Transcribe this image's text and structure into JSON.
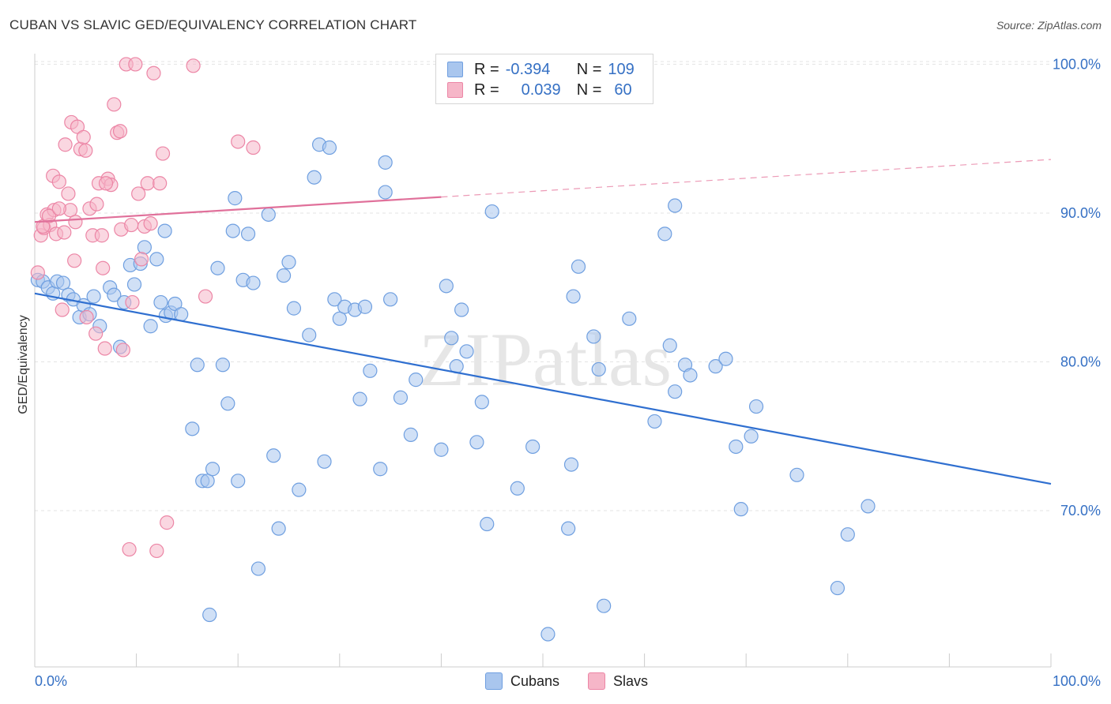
{
  "title": "CUBAN VS SLAVIC GED/EQUIVALENCY CORRELATION CHART",
  "source": "Source: ZipAtlas.com",
  "watermark": "ZIPatlas",
  "legend": {
    "rows": [
      {
        "r_label": "R =",
        "r_value": "-0.394",
        "n_label": "N =",
        "n_value": "109",
        "color": "#a9c6ee",
        "border": "#6f9fe0"
      },
      {
        "r_label": "R =",
        "r_value": "0.039",
        "n_label": "N =",
        "n_value": "60",
        "color": "#f6b6c8",
        "border": "#ec86a6"
      }
    ]
  },
  "bottom_legend": [
    "Cubans",
    "Slavs"
  ],
  "chart_data": {
    "type": "scatter",
    "title": "CUBAN VS SLAVIC GED/EQUIVALENCY CORRELATION CHART",
    "xlabel": "",
    "ylabel": "GED/Equivalency",
    "x_tick_labels": [
      "0.0%",
      "100.0%"
    ],
    "y_tick_labels": [
      "100.0%",
      "90.0%",
      "80.0%",
      "70.0%"
    ],
    "xlim": [
      0,
      100
    ],
    "ylim": [
      59.5,
      100.5
    ],
    "y_ticks": [
      100,
      90,
      80,
      70
    ],
    "grid": true,
    "series": [
      {
        "name": "Cubans",
        "color": "#6f9fe0",
        "fill": "#a9c6ee",
        "trend": {
          "x0": 0,
          "y0": 84.6,
          "x1": 100,
          "y1": 71.8,
          "dashed_from": null
        },
        "points": [
          [
            0.3,
            85.5
          ],
          [
            0.8,
            85.4
          ],
          [
            1.3,
            85.0
          ],
          [
            1.8,
            84.6
          ],
          [
            2.2,
            85.4
          ],
          [
            2.8,
            85.3
          ],
          [
            3.3,
            84.5
          ],
          [
            3.8,
            84.2
          ],
          [
            4.4,
            83.0
          ],
          [
            4.8,
            83.8
          ],
          [
            5.4,
            83.2
          ],
          [
            5.8,
            84.4
          ],
          [
            6.4,
            82.4
          ],
          [
            7.4,
            85.0
          ],
          [
            7.8,
            84.5
          ],
          [
            8.4,
            81.0
          ],
          [
            8.8,
            84.0
          ],
          [
            9.4,
            86.5
          ],
          [
            9.8,
            85.2
          ],
          [
            10.4,
            86.6
          ],
          [
            10.8,
            87.7
          ],
          [
            11.4,
            82.4
          ],
          [
            12.0,
            86.9
          ],
          [
            12.4,
            84.0
          ],
          [
            12.8,
            88.8
          ],
          [
            12.9,
            83.1
          ],
          [
            13.4,
            83.3
          ],
          [
            13.8,
            83.9
          ],
          [
            14.4,
            83.2
          ],
          [
            15.5,
            75.5
          ],
          [
            16.0,
            79.8
          ],
          [
            16.5,
            72.0
          ],
          [
            17.0,
            72.0
          ],
          [
            17.2,
            63.0
          ],
          [
            17.5,
            72.8
          ],
          [
            18.0,
            86.3
          ],
          [
            18.5,
            79.8
          ],
          [
            19.0,
            77.2
          ],
          [
            19.5,
            88.8
          ],
          [
            19.7,
            91.0
          ],
          [
            20.0,
            72.0
          ],
          [
            20.5,
            85.5
          ],
          [
            21.0,
            88.6
          ],
          [
            21.5,
            85.3
          ],
          [
            22.0,
            66.1
          ],
          [
            23.0,
            89.9
          ],
          [
            23.5,
            73.7
          ],
          [
            24.0,
            68.8
          ],
          [
            24.5,
            85.8
          ],
          [
            25.0,
            86.7
          ],
          [
            25.5,
            83.6
          ],
          [
            26.0,
            71.4
          ],
          [
            27.0,
            81.8
          ],
          [
            27.5,
            92.4
          ],
          [
            28.0,
            94.6
          ],
          [
            28.5,
            73.3
          ],
          [
            29.0,
            94.4
          ],
          [
            29.5,
            84.2
          ],
          [
            30.0,
            82.9
          ],
          [
            30.5,
            83.7
          ],
          [
            31.5,
            83.5
          ],
          [
            32.0,
            77.5
          ],
          [
            32.5,
            83.7
          ],
          [
            33.0,
            79.4
          ],
          [
            34.0,
            72.8
          ],
          [
            34.5,
            91.4
          ],
          [
            35.0,
            84.2
          ],
          [
            36.0,
            77.6
          ],
          [
            37.0,
            75.1
          ],
          [
            37.5,
            78.8
          ],
          [
            40.0,
            74.1
          ],
          [
            40.5,
            85.1
          ],
          [
            41.0,
            81.6
          ],
          [
            41.5,
            79.7
          ],
          [
            42.0,
            83.5
          ],
          [
            42.5,
            80.7
          ],
          [
            43.5,
            74.6
          ],
          [
            44.0,
            77.3
          ],
          [
            44.5,
            69.1
          ],
          [
            45.0,
            90.1
          ],
          [
            47.5,
            71.5
          ],
          [
            49.0,
            74.3
          ],
          [
            50.5,
            61.7
          ],
          [
            52.5,
            68.8
          ],
          [
            52.8,
            73.1
          ],
          [
            53.5,
            86.4
          ],
          [
            53.0,
            84.4
          ],
          [
            55.0,
            81.7
          ],
          [
            55.5,
            79.5
          ],
          [
            56.0,
            63.6
          ],
          [
            58.5,
            82.9
          ],
          [
            61.0,
            76.0
          ],
          [
            62.5,
            81.1
          ],
          [
            63.0,
            78.0
          ],
          [
            62.0,
            88.6
          ],
          [
            64.0,
            79.8
          ],
          [
            67.0,
            79.7
          ],
          [
            68.0,
            80.2
          ],
          [
            69.0,
            74.3
          ],
          [
            69.5,
            70.1
          ],
          [
            70.5,
            75.0
          ],
          [
            71.0,
            77.0
          ],
          [
            75.0,
            72.4
          ],
          [
            79.0,
            64.8
          ],
          [
            80.0,
            68.4
          ],
          [
            82.0,
            70.3
          ],
          [
            63.0,
            90.5
          ],
          [
            64.5,
            79.1
          ],
          [
            34.5,
            93.4
          ]
        ]
      },
      {
        "name": "Slavs",
        "color": "#ec86a6",
        "fill": "#f6b6c8",
        "trend": {
          "x0": 0,
          "y0": 89.4,
          "x1": 100,
          "y1": 93.6,
          "dashed_from": 40
        },
        "points": [
          [
            0.3,
            86.0
          ],
          [
            0.6,
            88.5
          ],
          [
            0.9,
            89.0
          ],
          [
            1.2,
            89.9
          ],
          [
            1.5,
            89.2
          ],
          [
            1.8,
            92.5
          ],
          [
            2.1,
            88.6
          ],
          [
            2.4,
            92.1
          ],
          [
            2.7,
            83.5
          ],
          [
            3.0,
            94.6
          ],
          [
            3.3,
            91.3
          ],
          [
            3.6,
            96.1
          ],
          [
            3.9,
            86.8
          ],
          [
            4.2,
            95.8
          ],
          [
            4.5,
            94.3
          ],
          [
            4.8,
            95.1
          ],
          [
            5.1,
            83.0
          ],
          [
            5.4,
            90.3
          ],
          [
            5.7,
            88.5
          ],
          [
            6.0,
            81.9
          ],
          [
            6.3,
            92.0
          ],
          [
            6.6,
            88.5
          ],
          [
            6.9,
            80.9
          ],
          [
            7.2,
            92.3
          ],
          [
            7.5,
            91.9
          ],
          [
            7.8,
            97.3
          ],
          [
            8.1,
            95.4
          ],
          [
            8.4,
            95.5
          ],
          [
            8.7,
            80.8
          ],
          [
            9.0,
            100.0
          ],
          [
            9.3,
            67.4
          ],
          [
            9.6,
            84.0
          ],
          [
            9.9,
            100.0
          ],
          [
            10.2,
            91.3
          ],
          [
            10.5,
            86.9
          ],
          [
            10.8,
            89.1
          ],
          [
            11.1,
            92.0
          ],
          [
            11.4,
            89.3
          ],
          [
            11.7,
            99.4
          ],
          [
            12.0,
            67.3
          ],
          [
            12.3,
            92.0
          ],
          [
            12.6,
            94.0
          ],
          [
            13.0,
            69.2
          ],
          [
            15.6,
            99.9
          ],
          [
            16.8,
            84.4
          ],
          [
            20.0,
            94.8
          ],
          [
            21.5,
            94.4
          ],
          [
            5.0,
            94.2
          ],
          [
            3.5,
            90.2
          ],
          [
            2.9,
            88.7
          ],
          [
            1.9,
            90.2
          ],
          [
            0.8,
            89.1
          ],
          [
            1.4,
            89.8
          ],
          [
            4.0,
            89.4
          ],
          [
            6.1,
            90.6
          ],
          [
            7.0,
            92.0
          ],
          [
            8.5,
            88.9
          ],
          [
            9.5,
            89.2
          ],
          [
            6.7,
            86.3
          ],
          [
            2.4,
            90.3
          ]
        ]
      }
    ]
  }
}
